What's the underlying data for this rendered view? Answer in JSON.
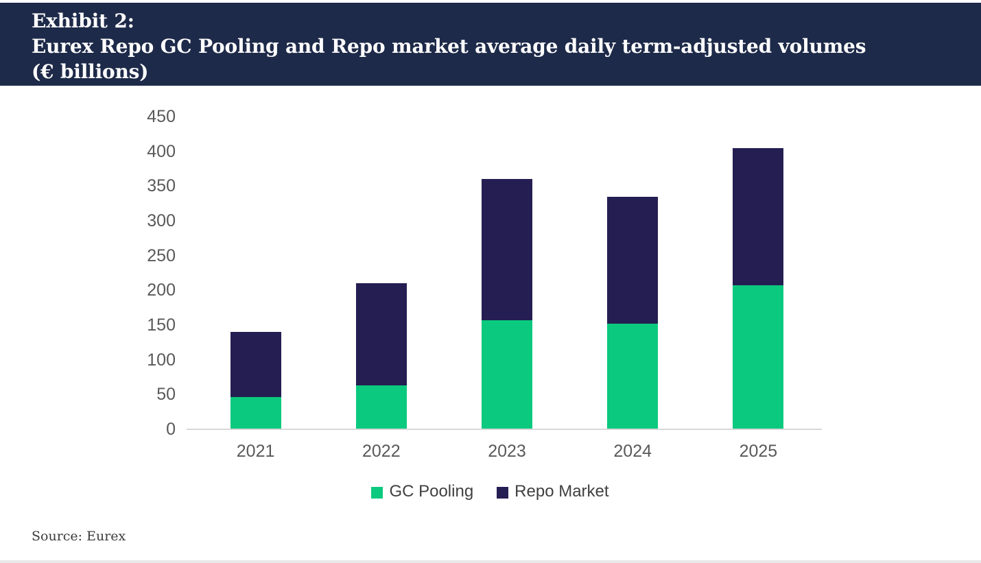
{
  "header": {
    "exhibit_label": "Exhibit 2:",
    "title": "Eurex Repo GC Pooling and Repo market average daily term-adjusted volumes",
    "unit_label": "(€ billions)"
  },
  "chart_data": {
    "type": "bar",
    "stacked": true,
    "title": "Eurex Repo GC Pooling and Repo market average daily term-adjusted volumes (€ billions)",
    "categories": [
      "2021",
      "2022",
      "2023",
      "2024",
      "2025"
    ],
    "series": [
      {
        "name": "GC Pooling",
        "color": "#0BC97E",
        "values": [
          46,
          63,
          157,
          152,
          207
        ]
      },
      {
        "name": "Repo Market",
        "color": "#241E52",
        "values": [
          94,
          147,
          203,
          183,
          198
        ]
      }
    ],
    "ylim": [
      0,
      450
    ],
    "yticks": [
      0,
      50,
      100,
      150,
      200,
      250,
      300,
      350,
      400,
      450
    ],
    "grid": false,
    "legend_position": "bottom"
  },
  "source": {
    "text": "Source: Eurex"
  },
  "colors": {
    "header_background": "#1E2A49",
    "header_text": "#FFFFFF",
    "gc_pooling_green": "#0BC97E",
    "repo_market_navy": "#241E52",
    "axis_line": "#D8D8D8",
    "tick_label": "#595959",
    "legend_text": "#404040",
    "source_text": "#3B3B3B"
  }
}
